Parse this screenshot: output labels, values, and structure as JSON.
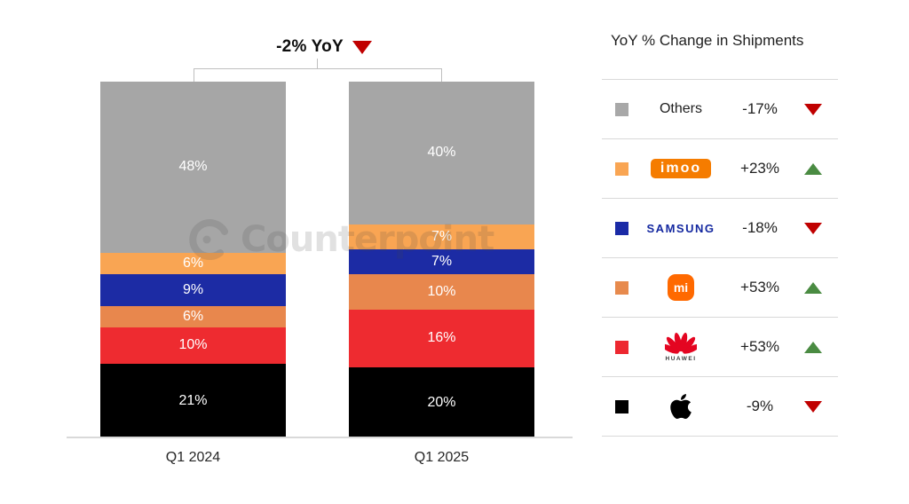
{
  "headline": {
    "label": "-2% YoY",
    "direction": "down"
  },
  "watermark": {
    "text": "Counterpoint"
  },
  "legend": {
    "title": "YoY % Change in Shipments",
    "rows": [
      {
        "brand": "Others",
        "logo_type": "plain",
        "logo_text": "Others",
        "swatch": "#A8A8A8",
        "change": "-17%",
        "direction": "down"
      },
      {
        "brand": "imoo",
        "logo_type": "imoo",
        "logo_text": "imoo",
        "swatch": "#F9A553",
        "change": "+23%",
        "direction": "up"
      },
      {
        "brand": "Samsung",
        "logo_type": "samsung",
        "logo_text": "SAMSUNG",
        "swatch": "#1A2AA6",
        "change": "-18%",
        "direction": "down"
      },
      {
        "brand": "Mi",
        "logo_type": "mi",
        "logo_text": "mi",
        "swatch": "#E78A4D",
        "change": "+53%",
        "direction": "up"
      },
      {
        "brand": "Huawei",
        "logo_type": "huawei",
        "logo_text": "HUAWEI",
        "swatch": "#ED2830",
        "change": "+53%",
        "direction": "up"
      },
      {
        "brand": "Apple",
        "logo_type": "apple",
        "logo_text": "",
        "swatch": "#000000",
        "change": "-9%",
        "direction": "down"
      }
    ]
  },
  "chart_data": {
    "type": "bar",
    "stacked": true,
    "orientation": "vertical",
    "categories": [
      "Q1 2024",
      "Q1 2025"
    ],
    "series": [
      {
        "name": "Others",
        "color": "#A6A6A6",
        "values": [
          48,
          40
        ]
      },
      {
        "name": "imoo",
        "color": "#F9A553",
        "values": [
          6,
          7
        ]
      },
      {
        "name": "Samsung",
        "color": "#1C2BA4",
        "values": [
          9,
          7
        ]
      },
      {
        "name": "Mi",
        "color": "#E8874D",
        "values": [
          6,
          10
        ]
      },
      {
        "name": "Huawei",
        "color": "#EE2B30",
        "values": [
          10,
          16
        ]
      },
      {
        "name": "Apple",
        "color": "#000000",
        "values": [
          21,
          20
        ]
      }
    ],
    "value_suffix": "%",
    "title": "-2% YoY",
    "legend_title": "YoY % Change in Shipments",
    "yoy_changes": {
      "Others": -17,
      "imoo": 23,
      "Samsung": -18,
      "Mi": 53,
      "Huawei": 53,
      "Apple": -9
    },
    "total_yoy_change_pct": -2,
    "ylim": [
      0,
      100
    ],
    "grid": false,
    "legend_position": "right"
  },
  "colors": {
    "trend_up": "#4A8B42",
    "trend_down": "#C00000",
    "axis_line": "#D9D9D9",
    "bracket_line": "#BFBFBF",
    "imoo_logo_bg": "#F57C00",
    "samsung_logo_text": "#1428A0",
    "mi_logo_bg": "#FF6900",
    "huawei_logo_red": "#E40521"
  }
}
